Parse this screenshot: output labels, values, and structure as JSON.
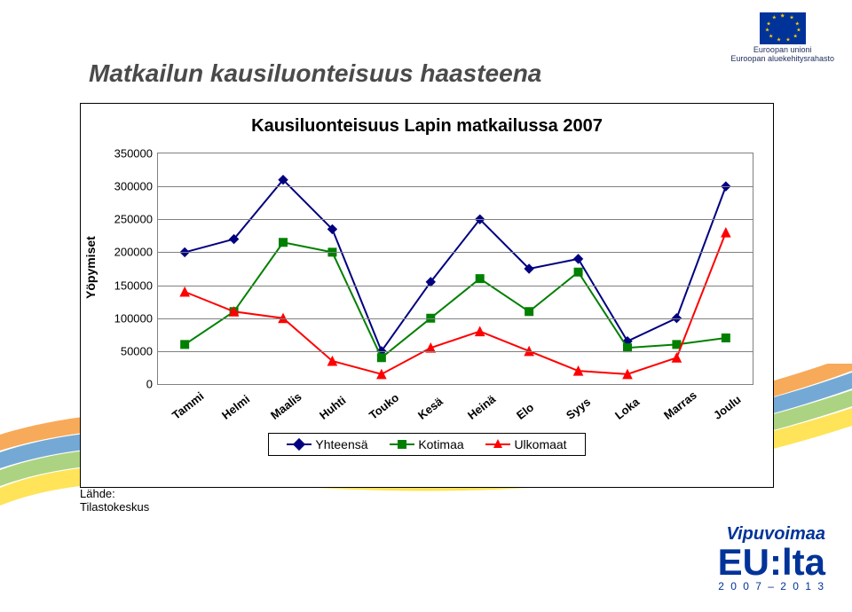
{
  "page": {
    "title": "Matkailun kausiluonteisuus haasteena"
  },
  "eu_logo": {
    "line1": "Euroopan unioni",
    "line2": "Euroopan aluekehitysrahasto",
    "flag_bg": "#003399",
    "star_color": "#ffcc00"
  },
  "chart": {
    "type": "line",
    "title": "Kausiluonteisuus Lapin matkailussa 2007",
    "title_fontsize": 20,
    "y_axis": {
      "label": "Yöpymiset",
      "min": 0,
      "max": 350000,
      "step": 50000,
      "label_fontsize": 14,
      "tick_fontsize": 13
    },
    "x_categories": [
      "Tammi",
      "Helmi",
      "Maalis",
      "Huhti",
      "Touko",
      "Kesä",
      "Heinä",
      "Elo",
      "Syys",
      "Loka",
      "Marras",
      "Joulu"
    ],
    "x_label_fontsize": 13,
    "x_label_rotation_deg": -38,
    "grid_color": "#808080",
    "background_color": "#ffffff",
    "series": [
      {
        "name": "Yhteensä",
        "color": "#000080",
        "marker": "diamond",
        "marker_size": 10,
        "line_width": 2,
        "values": [
          200000,
          220000,
          310000,
          235000,
          50000,
          155000,
          250000,
          175000,
          190000,
          65000,
          100000,
          300000
        ]
      },
      {
        "name": "Kotimaa",
        "color": "#008000",
        "marker": "square",
        "marker_size": 9,
        "line_width": 2,
        "values": [
          60000,
          110000,
          215000,
          200000,
          40000,
          100000,
          160000,
          110000,
          170000,
          55000,
          60000,
          70000
        ]
      },
      {
        "name": "Ulkomaat",
        "color": "#ff0000",
        "marker": "triangle",
        "marker_size": 10,
        "line_width": 2,
        "values": [
          140000,
          110000,
          100000,
          35000,
          15000,
          55000,
          80000,
          50000,
          20000,
          15000,
          40000,
          230000
        ]
      }
    ],
    "legend": {
      "position": "bottom-center",
      "border_color": "#000000",
      "fontsize": 14,
      "items": [
        {
          "label": "Yhteensä",
          "color": "#000080",
          "marker": "diamond"
        },
        {
          "label": "Kotimaa",
          "color": "#008000",
          "marker": "square"
        },
        {
          "label": "Ulkomaat",
          "color": "#ff0000",
          "marker": "triangle"
        }
      ]
    }
  },
  "source": {
    "line1": "Lähde:",
    "line2": "Tilastokeskus"
  },
  "vipu_logo": {
    "top": "Vipuvoimaa",
    "mid": "EU:lta",
    "years": "2 0 0 7 – 2 0 1 3",
    "color": "#003399"
  },
  "swoosh": {
    "colors": [
      "#f27c00",
      "#2b7bbf",
      "#7fbc3e",
      "#ffd400"
    ]
  }
}
